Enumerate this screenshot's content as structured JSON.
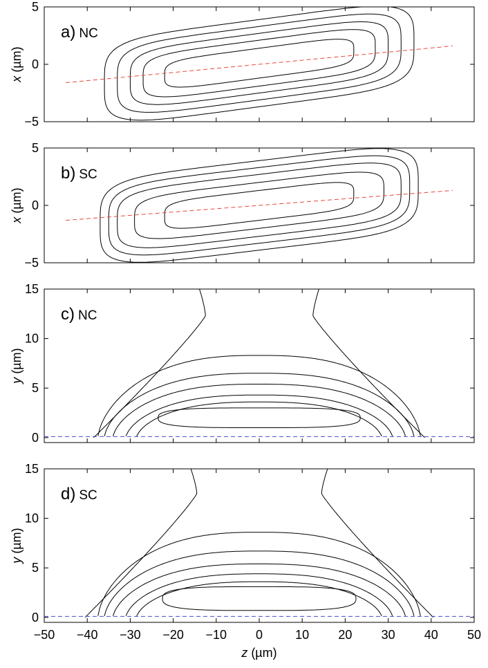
{
  "chart_data": [
    {
      "type": "contour",
      "panel_label": "a)",
      "panel_tag": "NC",
      "xlabel": "",
      "ylabel_var": "x",
      "ylabel_unit": " (µm)",
      "xlim": [
        -50,
        50
      ],
      "ylim": [
        -5,
        5
      ],
      "xticks": [
        -50,
        -40,
        -30,
        -20,
        -10,
        0,
        10,
        20,
        30,
        40,
        50
      ],
      "yticks": [
        -5,
        0,
        5
      ],
      "show_xtick_labels": false,
      "contours": [
        {
          "center": [
            0,
            0.1
          ],
          "half_length": 36,
          "half_width": 3.8,
          "tilt_per_um": 0.05
        },
        {
          "center": [
            0,
            0.1
          ],
          "half_length": 33,
          "half_width": 3.2,
          "tilt_per_um": 0.05
        },
        {
          "center": [
            0,
            0.1
          ],
          "half_length": 30,
          "half_width": 2.6,
          "tilt_per_um": 0.05
        },
        {
          "center": [
            0,
            0.1
          ],
          "half_length": 27,
          "half_width": 2.0,
          "tilt_per_um": 0.05
        },
        {
          "center": [
            0,
            0.1
          ],
          "half_length": 22,
          "half_width": 1.3,
          "tilt_per_um": 0.05
        }
      ],
      "reference_line": {
        "color": "#e8473c",
        "style": "dashed",
        "from": [
          -45,
          -1.6
        ],
        "to": [
          45,
          1.6
        ]
      }
    },
    {
      "type": "contour",
      "panel_label": "b)",
      "panel_tag": "SC",
      "xlabel": "",
      "ylabel_var": "x",
      "ylabel_unit": " (µm)",
      "xlim": [
        -50,
        50
      ],
      "ylim": [
        -5,
        5
      ],
      "xticks": [
        -50,
        -40,
        -30,
        -20,
        -10,
        0,
        10,
        20,
        30,
        40,
        50
      ],
      "yticks": [
        -5,
        0,
        5
      ],
      "show_xtick_labels": false,
      "contours": [
        {
          "center": [
            0,
            0.0
          ],
          "half_length": 37,
          "half_width": 3.9,
          "tilt_per_um": 0.045
        },
        {
          "center": [
            0,
            0.0
          ],
          "half_length": 35,
          "half_width": 3.3,
          "tilt_per_um": 0.045
        },
        {
          "center": [
            0,
            0.0
          ],
          "half_length": 33,
          "half_width": 2.7,
          "tilt_per_um": 0.045
        },
        {
          "center": [
            0,
            0.0
          ],
          "half_length": 29,
          "half_width": 2.0,
          "tilt_per_um": 0.045
        },
        {
          "center": [
            0,
            0.0
          ],
          "half_length": 22,
          "half_width": 1.3,
          "tilt_per_um": 0.045
        }
      ],
      "reference_line": {
        "color": "#e8473c",
        "style": "dashed",
        "from": [
          -45,
          -1.3
        ],
        "to": [
          45,
          1.3
        ]
      }
    },
    {
      "type": "contour",
      "panel_label": "c)",
      "panel_tag": "NC",
      "xlabel": "",
      "ylabel_var": "y",
      "ylabel_unit": " (µm)",
      "xlim": [
        -50,
        50
      ],
      "ylim": [
        -0.5,
        15
      ],
      "xticks": [
        -50,
        -40,
        -30,
        -20,
        -10,
        0,
        10,
        20,
        30,
        40,
        50
      ],
      "yticks": [
        0,
        5,
        10,
        15
      ],
      "show_xtick_labels": false,
      "domes": [
        {
          "peak_y": 8.3,
          "half_width": 37.5
        },
        {
          "peak_y": 6.5,
          "half_width": 36
        },
        {
          "peak_y": 5.4,
          "half_width": 34
        },
        {
          "peak_y": 4.3,
          "half_width": 31
        },
        {
          "peak_y": 3.6,
          "half_width": 28.5
        }
      ],
      "inner_loop": {
        "center": [
          0,
          2.0
        ],
        "half_length": 23.5,
        "half_height": 1.0
      },
      "funnel": {
        "neck_x": 12.5,
        "neck_y": 12.3
      },
      "reference_line": {
        "color": "#4a4ad8",
        "style": "dashed",
        "from": [
          -50,
          0.1
        ],
        "to": [
          50,
          0.1
        ]
      }
    },
    {
      "type": "contour",
      "panel_label": "d)",
      "panel_tag": "SC",
      "xlabel_var": "z",
      "xlabel_unit": " (µm)",
      "ylabel_var": "y",
      "ylabel_unit": " (µm)",
      "xlim": [
        -50,
        50
      ],
      "ylim": [
        -0.5,
        15
      ],
      "xticks": [
        -50,
        -40,
        -30,
        -20,
        -10,
        0,
        10,
        20,
        30,
        40,
        50
      ],
      "yticks": [
        0,
        5,
        10,
        15
      ],
      "show_xtick_labels": true,
      "domes": [
        {
          "peak_y": 8.6,
          "half_width": 37.5
        },
        {
          "peak_y": 6.7,
          "half_width": 36
        },
        {
          "peak_y": 5.4,
          "half_width": 34
        },
        {
          "peak_y": 4.4,
          "half_width": 31
        },
        {
          "peak_y": 3.6,
          "half_width": 28.5
        }
      ],
      "inner_loop": {
        "center": [
          0,
          1.9
        ],
        "half_length": 22.5,
        "half_height": 1.2
      },
      "funnel": {
        "neck_x": 14.5,
        "neck_y": 12.5
      },
      "reference_line": {
        "color": "#4a4ad8",
        "style": "dashed",
        "from": [
          -50,
          0.1
        ],
        "to": [
          50,
          0.1
        ]
      }
    }
  ]
}
